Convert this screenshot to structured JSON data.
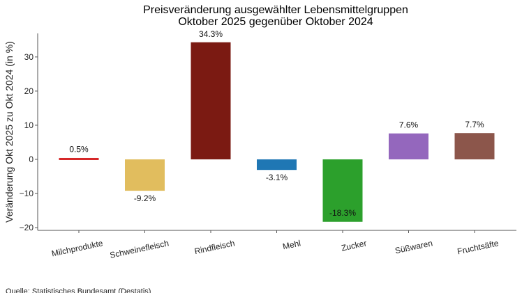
{
  "chart_data": {
    "type": "bar",
    "title": "Preisveränderung ausgewählter Lebensmittelgruppen",
    "subtitle": "Oktober 2025 gegenüber Oktober 2024",
    "xlabel": "",
    "ylabel": "Veränderung Okt 2025 zu Okt 2024 (in %)",
    "categories": [
      "Milchprodukte",
      "Schweinefleisch",
      "Rindfleisch",
      "Mehl",
      "Zucker",
      "Süßwaren",
      "Fruchtsäfte"
    ],
    "values": [
      0.5,
      -9.2,
      34.3,
      -3.1,
      -18.3,
      7.6,
      7.7
    ],
    "data_labels": [
      "0.5%",
      "-9.2%",
      "34.3%",
      "-3.1%",
      "-18.3%",
      "7.6%",
      "7.7%"
    ],
    "colors": [
      "#d62728",
      "#e1bd5e",
      "#7b1a12",
      "#1f77b4",
      "#2ca02c",
      "#9467bd",
      "#8c564b"
    ],
    "yticks": [
      -20,
      -10,
      0,
      10,
      20,
      30
    ],
    "ytick_labels": [
      "−20",
      "−10",
      "0",
      "10",
      "20",
      "30"
    ],
    "ylim": [
      -20.8,
      36.9
    ],
    "grid": false,
    "legend": "none"
  },
  "source": "Quelle: Statistisches Bundesamt (Destatis)"
}
